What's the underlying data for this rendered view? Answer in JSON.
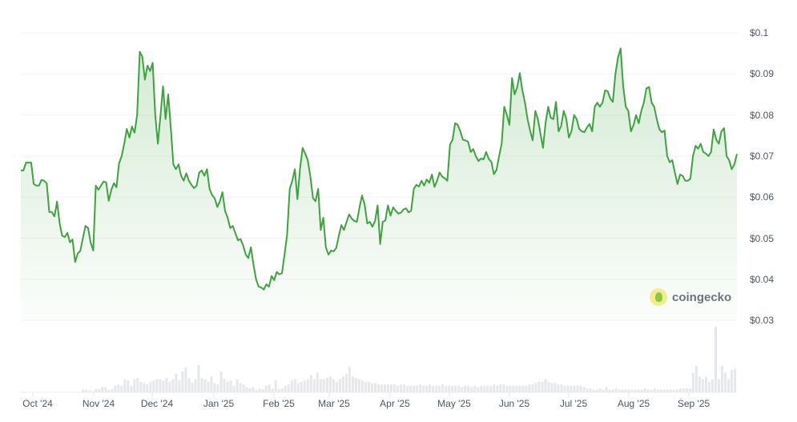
{
  "chart_data": {
    "type": "line",
    "title": "",
    "xlabel": "",
    "ylabel": "",
    "ylim": [
      0.03,
      0.1
    ],
    "grid": true,
    "legend": "none",
    "y_ticks": [
      "$0.1",
      "$0.09",
      "$0.08",
      "$0.07",
      "$0.06",
      "$0.05",
      "$0.04",
      "$0.03"
    ],
    "x_ticks": [
      "Oct '24",
      "Nov '24",
      "Dec '24",
      "Jan '25",
      "Feb '25",
      "Mar '25",
      "Apr '25",
      "May '25",
      "Jun '25",
      "Jul '25",
      "Aug '25",
      "Sep '25"
    ],
    "x_range": [
      "2024-09-25",
      "2025-09-25"
    ],
    "series": [
      {
        "name": "Price",
        "color": "#3ea23e",
        "fill": "#e2f2e2",
        "values": [
          0.0665,
          0.0665,
          0.0684,
          0.0684,
          0.0684,
          0.0632,
          0.0628,
          0.0628,
          0.0642,
          0.064,
          0.0634,
          0.0564,
          0.0564,
          0.0553,
          0.0589,
          0.0537,
          0.0506,
          0.0503,
          0.0513,
          0.049,
          0.0497,
          0.0442,
          0.0463,
          0.0469,
          0.05,
          0.053,
          0.0525,
          0.049,
          0.047,
          0.0628,
          0.0618,
          0.0628,
          0.0638,
          0.0636,
          0.0591,
          0.0618,
          0.0634,
          0.0624,
          0.0682,
          0.07,
          0.073,
          0.0766,
          0.0745,
          0.0772,
          0.0757,
          0.08,
          0.0954,
          0.0942,
          0.0886,
          0.092,
          0.0907,
          0.0927,
          0.08,
          0.073,
          0.0798,
          0.087,
          0.079,
          0.085,
          0.077,
          0.068,
          0.0668,
          0.068,
          0.0652,
          0.064,
          0.0658,
          0.064,
          0.063,
          0.0622,
          0.0628,
          0.066,
          0.0665,
          0.0652,
          0.0668,
          0.062,
          0.0605,
          0.0597,
          0.0576,
          0.059,
          0.0612,
          0.0566,
          0.055,
          0.0525,
          0.053,
          0.0512,
          0.0495,
          0.0498,
          0.0482,
          0.046,
          0.0452,
          0.0478,
          0.0435,
          0.04,
          0.0382,
          0.038,
          0.0375,
          0.0388,
          0.0382,
          0.0408,
          0.0398,
          0.0418,
          0.0412,
          0.0415,
          0.046,
          0.0508,
          0.062,
          0.064,
          0.0668,
          0.0595,
          0.067,
          0.072,
          0.0706,
          0.069,
          0.065,
          0.0598,
          0.059,
          0.062,
          0.052,
          0.055,
          0.0478,
          0.046,
          0.047,
          0.0468,
          0.0476,
          0.0506,
          0.0532,
          0.052,
          0.054,
          0.0558,
          0.0548,
          0.0542,
          0.054,
          0.0575,
          0.0604,
          0.0582,
          0.0536,
          0.054,
          0.0528,
          0.0542,
          0.058,
          0.0486,
          0.054,
          0.0543,
          0.058,
          0.0555,
          0.0575,
          0.0567,
          0.056,
          0.0562,
          0.057,
          0.0573,
          0.0563,
          0.0567,
          0.062,
          0.063,
          0.0626,
          0.064,
          0.0628,
          0.0643,
          0.0635,
          0.0655,
          0.0625,
          0.064,
          0.066,
          0.065,
          0.0646,
          0.064,
          0.0728,
          0.074,
          0.078,
          0.0776,
          0.076,
          0.074,
          0.0738,
          0.0735,
          0.071,
          0.0717,
          0.07,
          0.0688,
          0.0694,
          0.0692,
          0.071,
          0.0693,
          0.0686,
          0.0656,
          0.0666,
          0.07,
          0.073,
          0.082,
          0.08,
          0.0776,
          0.089,
          0.085,
          0.0868,
          0.0902,
          0.086,
          0.083,
          0.079,
          0.0762,
          0.0738,
          0.081,
          0.079,
          0.0755,
          0.072,
          0.0782,
          0.082,
          0.0793,
          0.079,
          0.0832,
          0.076,
          0.0773,
          0.081,
          0.079,
          0.0745,
          0.076,
          0.08,
          0.079,
          0.0766,
          0.076,
          0.0758,
          0.077,
          0.0778,
          0.076,
          0.082,
          0.083,
          0.082,
          0.083,
          0.086,
          0.0858,
          0.084,
          0.0832,
          0.09,
          0.094,
          0.0962,
          0.087,
          0.082,
          0.081,
          0.076,
          0.0775,
          0.08,
          0.078,
          0.081,
          0.083,
          0.0865,
          0.0868,
          0.083,
          0.082,
          0.079,
          0.0765,
          0.0758,
          0.0762,
          0.07,
          0.0685,
          0.069,
          0.066,
          0.0632,
          0.0655,
          0.0652,
          0.064,
          0.064,
          0.0645,
          0.07,
          0.0725,
          0.0718,
          0.073,
          0.071,
          0.0706,
          0.07,
          0.071,
          0.0765,
          0.074,
          0.073,
          0.076,
          0.0768,
          0.07,
          0.069,
          0.0668,
          0.068,
          0.0705
        ]
      },
      {
        "name": "Volume",
        "color": "#e5e7eb",
        "relative_values": [
          0,
          0,
          0,
          0,
          0,
          0,
          0,
          0,
          0,
          0,
          0,
          0,
          0,
          0,
          0,
          0,
          0,
          0,
          0,
          0.05,
          0.04,
          0.03,
          0.02,
          0.05,
          0.05,
          0.08,
          0.08,
          0.04,
          0.05,
          0.1,
          0.12,
          0.1,
          0.2,
          0.18,
          0.1,
          0.2,
          0.22,
          0.16,
          0.14,
          0.12,
          0.16,
          0.18,
          0.2,
          0.2,
          0.18,
          0.22,
          0.16,
          0.2,
          0.28,
          0.18,
          0.32,
          0.38,
          0.22,
          0.16,
          0.2,
          0.42,
          0.22,
          0.2,
          0.16,
          0.24,
          0.14,
          0.12,
          0.32,
          0.2,
          0.16,
          0.18,
          0.1,
          0.2,
          0.14,
          0.12,
          0.08,
          0.06,
          0.08,
          0.04,
          0.06,
          0.05,
          0.1,
          0.12,
          0.06,
          0.18,
          0.05,
          0.06,
          0.1,
          0.12,
          0.18,
          0.2,
          0.14,
          0.16,
          0.18,
          0.2,
          0.26,
          0.2,
          0.3,
          0.2,
          0.2,
          0.22,
          0.24,
          0.2,
          0.16,
          0.2,
          0.24,
          0.28,
          0.38,
          0.24,
          0.22,
          0.2,
          0.18,
          0.16,
          0.16,
          0.14,
          0.14,
          0.12,
          0.12,
          0.12,
          0.12,
          0.12,
          0.12,
          0.1,
          0.12,
          0.12,
          0.1,
          0.1,
          0.1,
          0.1,
          0.12,
          0.1,
          0.1,
          0.12,
          0.1,
          0.1,
          0.1,
          0.12,
          0.1,
          0.1,
          0.1,
          0.1,
          0.1,
          0.08,
          0.1,
          0.1,
          0.08,
          0.1,
          0.08,
          0.1,
          0.1,
          0.1,
          0.1,
          0.12,
          0.1,
          0.12,
          0.12,
          0.1,
          0.1,
          0.1,
          0.1,
          0.1,
          0.1,
          0.1,
          0.12,
          0.12,
          0.14,
          0.16,
          0.16,
          0.2,
          0.16,
          0.14,
          0.14,
          0.12,
          0.12,
          0.1,
          0.1,
          0.1,
          0.1,
          0.1,
          0.1,
          0.08,
          0.06,
          0.06,
          0.04,
          0.04,
          0.06,
          0.04,
          0.08,
          0.04,
          0.04,
          0.06,
          0.04,
          0.04,
          0.04,
          0.04,
          0.04,
          0.04,
          0.04,
          0.04,
          0.06,
          0.04,
          0.04,
          0.06,
          0.04,
          0.04,
          0.04,
          0.04,
          0.04,
          0.04,
          0.04,
          0.06,
          0.06,
          0.06,
          0.06,
          0.3,
          0.4,
          0.24,
          0.2,
          0.24,
          0.16,
          0.2,
          1.0,
          0.2,
          0.4,
          0.3,
          0.2,
          0.34,
          0.36
        ]
      }
    ]
  },
  "watermark": {
    "brand_text": "coingecko",
    "icon": "coingecko-gecko-icon"
  }
}
